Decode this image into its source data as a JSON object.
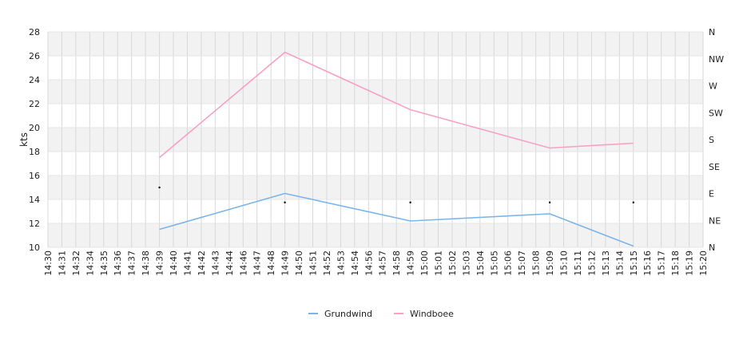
{
  "chart_data": {
    "type": "line",
    "ylabel": "kts",
    "ylim": [
      10,
      28
    ],
    "y_ticks": [
      "10",
      "12",
      "14",
      "16",
      "18",
      "20",
      "22",
      "24",
      "26",
      "28"
    ],
    "x_ticks": [
      "14:30",
      "14:31",
      "14:32",
      "14:34",
      "14:35",
      "14:36",
      "14:37",
      "14:38",
      "14:39",
      "14:40",
      "14:41",
      "14:42",
      "14:43",
      "14:44",
      "14:46",
      "14:47",
      "14:48",
      "14:49",
      "14:50",
      "14:51",
      "14:52",
      "14:53",
      "14:54",
      "14:56",
      "14:57",
      "14:58",
      "14:59",
      "15:00",
      "15:01",
      "15:02",
      "15:03",
      "15:04",
      "15:05",
      "15:06",
      "15:07",
      "15:08",
      "15:09",
      "15:10",
      "15:11",
      "15:12",
      "15:13",
      "15:14",
      "15:15",
      "15:16",
      "15:17",
      "15:18",
      "15:19",
      "15:20"
    ],
    "right_axis": {
      "labels": [
        "N",
        "NE",
        "E",
        "SE",
        "S",
        "SW",
        "W",
        "NW",
        "N"
      ],
      "range_degrees": [
        0,
        360
      ]
    },
    "grid": true,
    "legend_position": "bottom-center",
    "series": [
      {
        "name": "Grundwind",
        "color": "#7cb5ec",
        "points": [
          {
            "x": "14:39",
            "y": 11.5
          },
          {
            "x": "14:49",
            "y": 14.5
          },
          {
            "x": "14:59",
            "y": 12.2
          },
          {
            "x": "15:09",
            "y": 12.8
          },
          {
            "x": "15:15",
            "y": 10.1
          }
        ]
      },
      {
        "name": "Windboee",
        "color": "#f7a1c4",
        "points": [
          {
            "x": "14:39",
            "y": 17.5
          },
          {
            "x": "14:49",
            "y": 26.3
          },
          {
            "x": "14:59",
            "y": 21.5
          },
          {
            "x": "15:09",
            "y": 18.3
          },
          {
            "x": "15:15",
            "y": 18.7
          }
        ]
      }
    ],
    "direction_points": [
      {
        "x": "14:39",
        "degrees": 100
      },
      {
        "x": "14:49",
        "degrees": 75
      },
      {
        "x": "14:59",
        "degrees": 75
      },
      {
        "x": "15:09",
        "degrees": 75
      },
      {
        "x": "15:15",
        "degrees": 75
      }
    ]
  }
}
